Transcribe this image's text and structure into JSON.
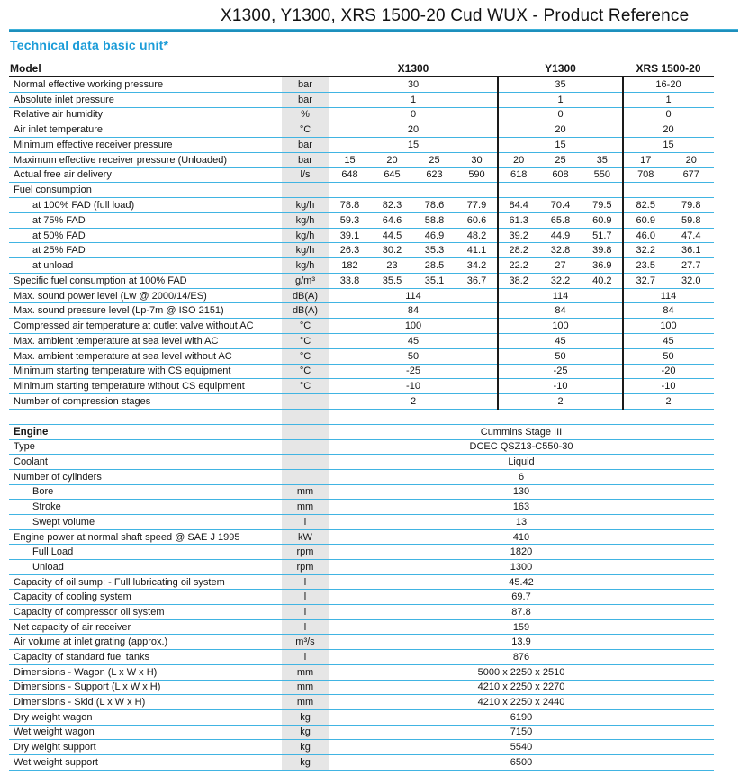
{
  "page": {
    "title": "X1300, Y1300, XRS 1500-20 Cud WUX - Product Reference",
    "section_title": "Technical data basic unit*"
  },
  "colors": {
    "accent_cyan": "#1b9cd8",
    "row_line_cyan": "#41b4e2",
    "divider_black": "#1a1a1a",
    "unit_band_grey": "#e6e6e6"
  },
  "table": {
    "header": {
      "model_label": "Model",
      "columns": [
        "X1300",
        "Y1300",
        "XRS 1500-20"
      ]
    },
    "basic_unit_rows": [
      {
        "label": "Normal effective working pressure",
        "unit": "bar",
        "type": "group",
        "values": [
          "30",
          "35",
          "16-20"
        ]
      },
      {
        "label": "Absolute inlet pressure",
        "unit": "bar",
        "type": "group",
        "values": [
          "1",
          "1",
          "1"
        ]
      },
      {
        "label": "Relative air humidity",
        "unit": "%",
        "type": "group",
        "values": [
          "0",
          "0",
          "0"
        ]
      },
      {
        "label": "Air inlet temperature",
        "unit": "°C",
        "type": "group",
        "values": [
          "20",
          "20",
          "20"
        ]
      },
      {
        "label": "Minimum effective receiver pressure",
        "unit": "bar",
        "type": "group",
        "values": [
          "15",
          "15",
          "15"
        ]
      },
      {
        "label": "Maximum effective receiver pressure (Unloaded)",
        "unit": "bar",
        "type": "multi",
        "values": [
          [
            "15",
            "20",
            "25",
            "30"
          ],
          [
            "20",
            "25",
            "35"
          ],
          [
            "17",
            "20"
          ]
        ]
      },
      {
        "label": "Actual free air delivery",
        "unit": "l/s",
        "type": "multi",
        "values": [
          [
            "648",
            "645",
            "623",
            "590"
          ],
          [
            "618",
            "608",
            "550"
          ],
          [
            "708",
            "677"
          ]
        ]
      },
      {
        "label": "Fuel consumption",
        "unit": "",
        "type": "empty"
      },
      {
        "label": "at 100% FAD (full load)",
        "indent": 1,
        "unit": "kg/h",
        "type": "multi",
        "values": [
          [
            "78.8",
            "82.3",
            "78.6",
            "77.9"
          ],
          [
            "84.4",
            "70.4",
            "79.5"
          ],
          [
            "82.5",
            "79.8"
          ]
        ]
      },
      {
        "label": "at 75% FAD",
        "indent": 1,
        "unit": "kg/h",
        "type": "multi",
        "values": [
          [
            "59.3",
            "64.6",
            "58.8",
            "60.6"
          ],
          [
            "61.3",
            "65.8",
            "60.9"
          ],
          [
            "60.9",
            "59.8"
          ]
        ]
      },
      {
        "label": "at 50% FAD",
        "indent": 1,
        "unit": "kg/h",
        "type": "multi",
        "values": [
          [
            "39.1",
            "44.5",
            "46.9",
            "48.2"
          ],
          [
            "39.2",
            "44.9",
            "51.7"
          ],
          [
            "46.0",
            "47.4"
          ]
        ]
      },
      {
        "label": "at 25% FAD",
        "indent": 1,
        "unit": "kg/h",
        "type": "multi",
        "values": [
          [
            "26.3",
            "30.2",
            "35.3",
            "41.1"
          ],
          [
            "28.2",
            "32.8",
            "39.8"
          ],
          [
            "32.2",
            "36.1"
          ]
        ]
      },
      {
        "label": "at unload",
        "indent": 1,
        "unit": "kg/h",
        "type": "multi",
        "values": [
          [
            "182",
            "23",
            "28.5",
            "34.2"
          ],
          [
            "22.2",
            "27",
            "36.9"
          ],
          [
            "23.5",
            "27.7"
          ]
        ]
      },
      {
        "label": "Specific fuel consumption at 100% FAD",
        "unit": "g/m³",
        "type": "multi",
        "values": [
          [
            "33.8",
            "35.5",
            "35.1",
            "36.7"
          ],
          [
            "38.2",
            "32.2",
            "40.2"
          ],
          [
            "32.7",
            "32.0"
          ]
        ]
      },
      {
        "label": "Max. sound power level (Lw @ 2000/14/ES)",
        "unit": "dB(A)",
        "type": "group",
        "values": [
          "114",
          "114",
          "114"
        ]
      },
      {
        "label": "Max. sound pressure level (Lp-7m @ ISO 2151)",
        "unit": "dB(A)",
        "type": "group",
        "values": [
          "84",
          "84",
          "84"
        ]
      },
      {
        "label": "Compressed air temperature at outlet valve without AC",
        "unit": "°C",
        "type": "group",
        "values": [
          "100",
          "100",
          "100"
        ]
      },
      {
        "label": "Max. ambient temperature at sea level with AC",
        "unit": "°C",
        "type": "group",
        "values": [
          "45",
          "45",
          "45"
        ]
      },
      {
        "label": "Max. ambient temperature at sea level without AC",
        "unit": "°C",
        "type": "group",
        "values": [
          "50",
          "50",
          "50"
        ]
      },
      {
        "label": "Minimum starting temperature with CS equipment",
        "unit": "°C",
        "type": "group",
        "values": [
          "-25",
          "-25",
          "-20"
        ]
      },
      {
        "label": "Minimum starting temperature without CS equipment",
        "unit": "°C",
        "type": "group",
        "values": [
          "-10",
          "-10",
          "-10"
        ]
      },
      {
        "label": "Number of compression stages",
        "unit": "",
        "type": "group",
        "values": [
          "2",
          "2",
          "2"
        ]
      }
    ],
    "engine_rows": [
      {
        "label": "Engine",
        "bold": true,
        "unit": "",
        "type": "full",
        "value": "Cummins Stage III"
      },
      {
        "label": "Type",
        "unit": "",
        "type": "full",
        "value": "DCEC QSZ13-C550-30"
      },
      {
        "label": "Coolant",
        "unit": "",
        "type": "full",
        "value": "Liquid"
      },
      {
        "label": "Number of cylinders",
        "unit": "",
        "type": "full",
        "value": "6"
      },
      {
        "label": "Bore",
        "indent": 1,
        "unit": "mm",
        "type": "full",
        "value": "130"
      },
      {
        "label": "Stroke",
        "indent": 1,
        "unit": "mm",
        "type": "full",
        "value": "163"
      },
      {
        "label": "Swept volume",
        "indent": 1,
        "unit": "l",
        "type": "full",
        "value": "13"
      },
      {
        "label": "Engine power at normal shaft speed @ SAE J 1995",
        "unit": "kW",
        "type": "full",
        "value": "410"
      },
      {
        "label": "Full Load",
        "indent": 1,
        "unit": "rpm",
        "type": "full",
        "value": "1820"
      },
      {
        "label": "Unload",
        "indent": 1,
        "unit": "rpm",
        "type": "full",
        "value": "1300"
      },
      {
        "label": "Capacity of oil sump: - Full lubricating oil system",
        "unit": "l",
        "type": "full",
        "value": "45.42"
      },
      {
        "label": "Capacity of cooling system",
        "unit": "l",
        "type": "full",
        "value": "69.7"
      },
      {
        "label": "Capacity of compressor oil system",
        "unit": "l",
        "type": "full",
        "value": "87.8"
      },
      {
        "label": "Net capacity of air receiver",
        "unit": "l",
        "type": "full",
        "value": "159"
      },
      {
        "label": "Air volume at inlet grating (approx.)",
        "unit": "m³/s",
        "type": "full",
        "value": "13.9"
      },
      {
        "label": "Capacity of standard fuel tanks",
        "unit": "l",
        "type": "full",
        "value": "876"
      },
      {
        "label": "Dimensions - Wagon (L x W x H)",
        "unit": "mm",
        "type": "full",
        "value": "5000 x 2250 x 2510"
      },
      {
        "label": "Dimensions - Support (L x W x H)",
        "unit": "mm",
        "type": "full",
        "value": "4210 x 2250 x 2270"
      },
      {
        "label": "Dimensions - Skid (L x W x H)",
        "unit": "mm",
        "type": "full",
        "value": "4210 x 2250 x 2440"
      },
      {
        "label": "Dry weight wagon",
        "unit": "kg",
        "type": "full",
        "value": "6190"
      },
      {
        "label": "Wet weight wagon",
        "unit": "kg",
        "type": "full",
        "value": "7150"
      },
      {
        "label": "Dry weight support",
        "unit": "kg",
        "type": "full",
        "value": "5540"
      },
      {
        "label": "Wet weight support",
        "unit": "kg",
        "type": "full",
        "value": "6500"
      }
    ]
  }
}
